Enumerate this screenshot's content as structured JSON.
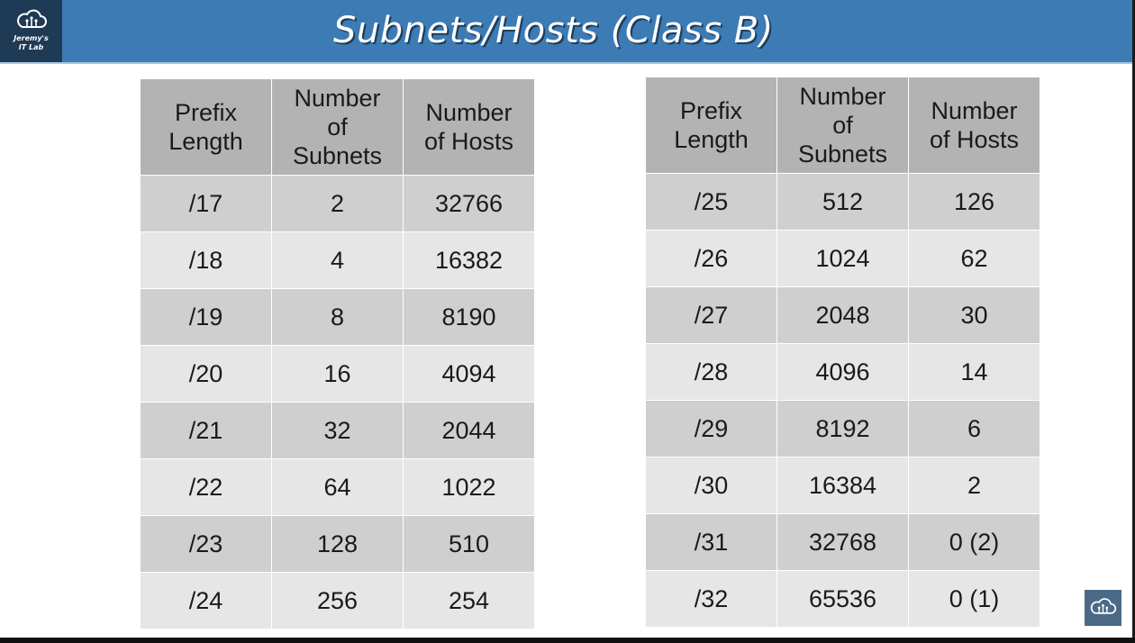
{
  "header": {
    "title": "Subnets/Hosts (Class B)",
    "logo_line1": "Jeremy's",
    "logo_line2": "IT Lab",
    "logo_icon": "cloud-circuit-icon"
  },
  "columns": {
    "prefix": [
      "Prefix",
      "Length"
    ],
    "subnets": [
      "Number",
      "of",
      "Subnets"
    ],
    "hosts": [
      "Number",
      "of Hosts"
    ]
  },
  "table_left": [
    {
      "prefix": "/17",
      "subnets": "2",
      "hosts": "32766"
    },
    {
      "prefix": "/18",
      "subnets": "4",
      "hosts": "16382"
    },
    {
      "prefix": "/19",
      "subnets": "8",
      "hosts": "8190"
    },
    {
      "prefix": "/20",
      "subnets": "16",
      "hosts": "4094"
    },
    {
      "prefix": "/21",
      "subnets": "32",
      "hosts": "2044"
    },
    {
      "prefix": "/22",
      "subnets": "64",
      "hosts": "1022"
    },
    {
      "prefix": "/23",
      "subnets": "128",
      "hosts": "510"
    },
    {
      "prefix": "/24",
      "subnets": "256",
      "hosts": "254"
    }
  ],
  "table_right": [
    {
      "prefix": "/25",
      "subnets": "512",
      "hosts": "126"
    },
    {
      "prefix": "/26",
      "subnets": "1024",
      "hosts": "62"
    },
    {
      "prefix": "/27",
      "subnets": "2048",
      "hosts": "30"
    },
    {
      "prefix": "/28",
      "subnets": "4096",
      "hosts": "14"
    },
    {
      "prefix": "/29",
      "subnets": "8192",
      "hosts": "6"
    },
    {
      "prefix": "/30",
      "subnets": "16384",
      "hosts": "2"
    },
    {
      "prefix": "/31",
      "subnets": "32768",
      "hosts": "0 (2)"
    },
    {
      "prefix": "/32",
      "subnets": "65536",
      "hosts": "0 (1)"
    }
  ],
  "colors": {
    "header_bg": "#3d7bb5",
    "logo_bg": "#1f3a54",
    "th_bg": "#b3b3b3",
    "row_dark": "#cfcfcf",
    "row_light": "#e6e6e6"
  }
}
